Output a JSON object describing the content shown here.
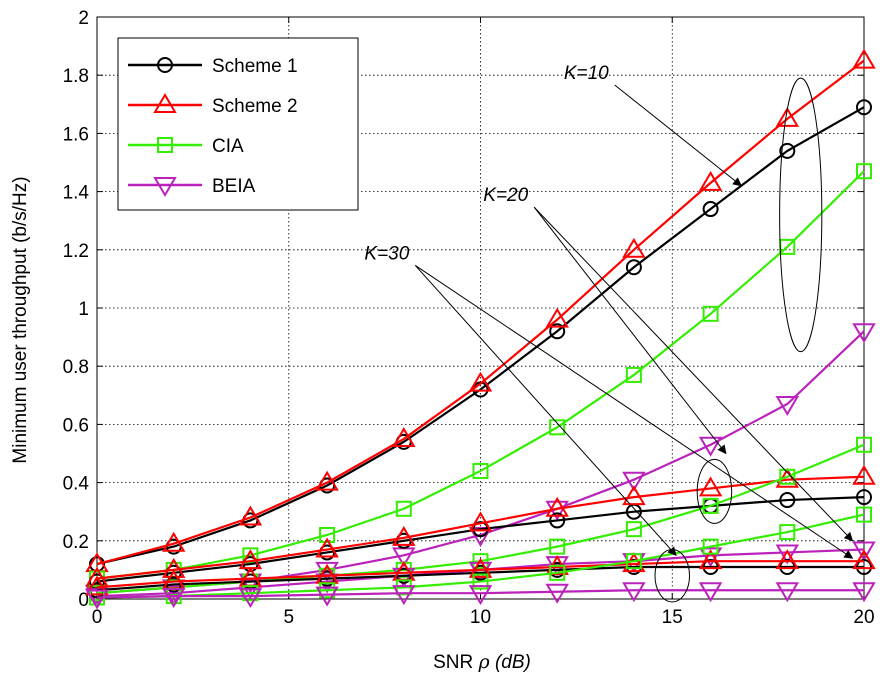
{
  "chart_data": {
    "type": "line",
    "xlabel_prefix": "SNR",
    "xlabel_symbol": "ρ",
    "xlabel_unit": "(dB)",
    "ylabel": "Minimum user throughput (b/s/Hz)",
    "xlim": [
      0,
      20
    ],
    "ylim": [
      0,
      2
    ],
    "xticks": [
      0,
      5,
      10,
      15,
      20
    ],
    "yticks": [
      0,
      0.2,
      0.4,
      0.6,
      0.8,
      1,
      1.2,
      1.4,
      1.6,
      1.8,
      2
    ],
    "grid": true,
    "legend_position": "top-left",
    "x": [
      0,
      2,
      4,
      6,
      8,
      10,
      12,
      14,
      16,
      18,
      20
    ],
    "series": [
      {
        "name": "Scheme 1",
        "color": "#000000",
        "marker": "circle",
        "group": "K=10",
        "values": [
          0.12,
          0.18,
          0.27,
          0.39,
          0.54,
          0.72,
          0.92,
          1.14,
          1.34,
          1.54,
          1.69
        ]
      },
      {
        "name": "Scheme 2",
        "color": "#ff0000",
        "marker": "triangle-up",
        "group": "K=10",
        "values": [
          0.12,
          0.19,
          0.28,
          0.4,
          0.55,
          0.74,
          0.96,
          1.2,
          1.43,
          1.65,
          1.85
        ]
      },
      {
        "name": "CIA",
        "color": "#33ee00",
        "marker": "square",
        "group": "K=10",
        "values": [
          0.07,
          0.1,
          0.15,
          0.22,
          0.31,
          0.44,
          0.59,
          0.77,
          0.98,
          1.21,
          1.47
        ]
      },
      {
        "name": "BEIA",
        "color": "#bb22bb",
        "marker": "triangle-down",
        "group": "K=10",
        "values": [
          0.02,
          0.04,
          0.06,
          0.1,
          0.15,
          0.22,
          0.31,
          0.41,
          0.53,
          0.67,
          0.92
        ]
      },
      {
        "name": "",
        "color": "#000000",
        "marker": "circle",
        "group": "K=20",
        "values": [
          0.06,
          0.09,
          0.12,
          0.16,
          0.2,
          0.24,
          0.27,
          0.3,
          0.32,
          0.34,
          0.35
        ]
      },
      {
        "name": "",
        "color": "#ff0000",
        "marker": "triangle-up",
        "group": "K=20",
        "values": [
          0.07,
          0.1,
          0.13,
          0.17,
          0.21,
          0.26,
          0.31,
          0.35,
          0.38,
          0.41,
          0.42
        ]
      },
      {
        "name": "",
        "color": "#33ee00",
        "marker": "square",
        "group": "K=20",
        "values": [
          0.02,
          0.04,
          0.06,
          0.08,
          0.1,
          0.13,
          0.18,
          0.24,
          0.32,
          0.42,
          0.53
        ]
      },
      {
        "name": "",
        "color": "#bb22bb",
        "marker": "triangle-down",
        "group": "K=20",
        "values": [
          0.01,
          0.02,
          0.04,
          0.06,
          0.08,
          0.1,
          0.12,
          0.13,
          0.15,
          0.16,
          0.17
        ]
      },
      {
        "name": "",
        "color": "#000000",
        "marker": "circle",
        "group": "K=30",
        "values": [
          0.03,
          0.05,
          0.06,
          0.07,
          0.08,
          0.09,
          0.1,
          0.11,
          0.11,
          0.11,
          0.11
        ]
      },
      {
        "name": "",
        "color": "#ff0000",
        "marker": "triangle-up",
        "group": "K=30",
        "values": [
          0.04,
          0.06,
          0.07,
          0.08,
          0.09,
          0.1,
          0.11,
          0.12,
          0.13,
          0.13,
          0.13
        ]
      },
      {
        "name": "",
        "color": "#33ee00",
        "marker": "square",
        "group": "K=30",
        "values": [
          0.005,
          0.01,
          0.02,
          0.03,
          0.04,
          0.06,
          0.09,
          0.13,
          0.18,
          0.23,
          0.29
        ]
      },
      {
        "name": "",
        "color": "#bb22bb",
        "marker": "triangle-down",
        "group": "K=30",
        "values": [
          0.005,
          0.01,
          0.01,
          0.015,
          0.02,
          0.02,
          0.025,
          0.03,
          0.03,
          0.03,
          0.03
        ]
      }
    ],
    "annotations": [
      {
        "text": "K=10",
        "x": 13.5,
        "y": 1.78,
        "arrow_to": [
          16.8,
          1.42
        ],
        "ellipse": {
          "cx": 18.35,
          "cy": 1.32,
          "rx": 0.55,
          "ry": 0.47
        }
      },
      {
        "text": "K=20",
        "x": 11.4,
        "y": 1.36,
        "arrow_to": [
          16.4,
          0.5
        ],
        "ellipse": {
          "cx": 16.1,
          "cy": 0.37,
          "rx": 0.45,
          "ry": 0.11
        }
      },
      {
        "text": "K=30",
        "x": 8.3,
        "y": 1.16,
        "arrow_to": [
          15.1,
          0.15
        ],
        "ellipse": {
          "cx": 15.0,
          "cy": 0.08,
          "rx": 0.45,
          "ry": 0.09
        }
      }
    ],
    "annotation_extra_arrows": [
      {
        "from": [
          11.4,
          1.36
        ],
        "to": [
          19.7,
          0.2
        ]
      },
      {
        "from": [
          8.3,
          1.16
        ],
        "to": [
          19.7,
          0.14
        ]
      }
    ]
  }
}
